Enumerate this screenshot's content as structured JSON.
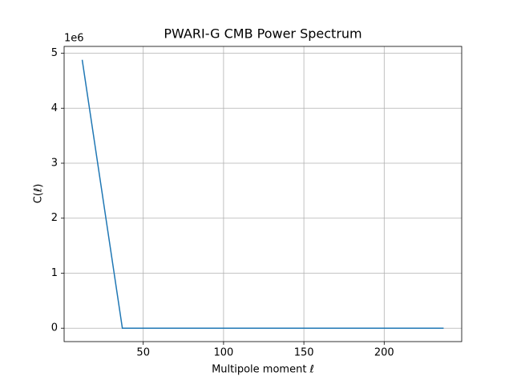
{
  "chart_data": {
    "type": "line",
    "title": "PWARI-G CMB Power Spectrum",
    "x_label": "Multipole moment ℓ",
    "y_label": "C(ℓ)",
    "y_offset_label": "1e6",
    "x": [
      12,
      37,
      62,
      87,
      112,
      137,
      162,
      187,
      212,
      237
    ],
    "series": [
      {
        "name": "C(ℓ)",
        "color": "#1f77b4",
        "values": [
          4880000,
          0,
          0,
          0,
          0,
          0,
          0,
          0,
          0,
          0
        ]
      }
    ],
    "xlim": [
      0.75,
      248.25
    ],
    "ylim": [
      -244000,
      5124000
    ],
    "xticks": [
      50,
      100,
      150,
      200
    ],
    "yticks": [
      {
        "value": 0,
        "label": "0"
      },
      {
        "value": 1000000,
        "label": "1"
      },
      {
        "value": 2000000,
        "label": "2"
      },
      {
        "value": 3000000,
        "label": "3"
      },
      {
        "value": 4000000,
        "label": "4"
      },
      {
        "value": 5000000,
        "label": "5"
      }
    ],
    "grid": true
  }
}
